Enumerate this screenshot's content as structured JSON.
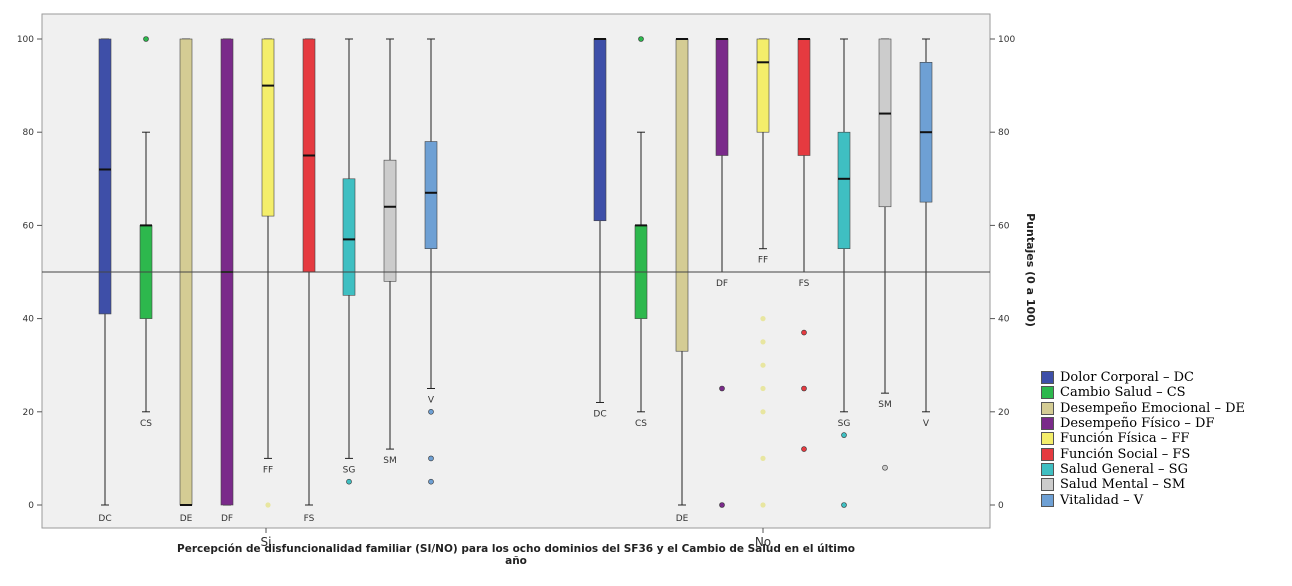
{
  "chart_data": {
    "type": "boxplot",
    "title": "",
    "xlabel": "Percepción de disfuncionalidad familiar  (SI/NO) para los ocho dominios del SF36 y el Cambio de Salud en el último año",
    "ylabel": "Puntajes (0 a 100)",
    "ylim": [
      -5,
      105
    ],
    "yticks": [
      0,
      20,
      40,
      60,
      80,
      100
    ],
    "reference_line": 50,
    "grid": false,
    "legend_position": "right",
    "categories": [
      "Si",
      "No"
    ],
    "series": [
      {
        "name": "Dolor Corporal – DC",
        "code": "DC",
        "color": "#3e4fa8",
        "boxes": [
          {
            "min": 0,
            "q1": 41,
            "median": 72,
            "q3": 100,
            "max": 100,
            "outliers": [],
            "outlier_style": "dot"
          },
          {
            "min": 22,
            "q1": 61,
            "median": 100,
            "q3": 100,
            "max": 100,
            "outliers": [],
            "outlier_style": "dot"
          }
        ]
      },
      {
        "name": "Cambio Salud – CS",
        "code": "CS",
        "color": "#2db84d",
        "boxes": [
          {
            "min": 20,
            "q1": 40,
            "median": 60,
            "q3": 60,
            "max": 80,
            "outliers": [
              100
            ],
            "outlier_style": "dot"
          },
          {
            "min": 20,
            "q1": 40,
            "median": 60,
            "q3": 60,
            "max": 80,
            "outliers": [
              100
            ],
            "outlier_style": "dot"
          }
        ]
      },
      {
        "name": "Desempeño Emocional – DE",
        "code": "DE",
        "color": "#d4cc94",
        "boxes": [
          {
            "min": 0,
            "q1": 0,
            "median": 0,
            "q3": 100,
            "max": 100,
            "outliers": [],
            "outlier_style": "dot"
          },
          {
            "min": 0,
            "q1": 33,
            "median": 100,
            "q3": 100,
            "max": 100,
            "outliers": [],
            "outlier_style": "dot"
          }
        ]
      },
      {
        "name": "Desempeño Físico – DF",
        "code": "DF",
        "color": "#7a2a8a",
        "boxes": [
          {
            "min": 0,
            "q1": 0,
            "median": 50,
            "q3": 100,
            "max": 100,
            "outliers": [],
            "outlier_style": "dot"
          },
          {
            "min": 50,
            "q1": 75,
            "median": 100,
            "q3": 100,
            "max": 100,
            "outliers": [
              25,
              0
            ],
            "outlier_style": "dot"
          }
        ]
      },
      {
        "name": "Función Física – FF",
        "code": "FF",
        "color": "#f4ee6a",
        "boxes": [
          {
            "min": 10,
            "q1": 62,
            "median": 90,
            "q3": 100,
            "max": 100,
            "outliers": [
              0
            ],
            "outlier_style": "faint"
          },
          {
            "min": 55,
            "q1": 80,
            "median": 95,
            "q3": 100,
            "max": 100,
            "outliers": [
              40,
              35,
              30,
              25,
              20,
              10,
              0
            ],
            "outlier_style": "faint"
          }
        ]
      },
      {
        "name": "Función Social – FS",
        "code": "FS",
        "color": "#e53a40",
        "boxes": [
          {
            "min": 0,
            "q1": 50,
            "median": 75,
            "q3": 100,
            "max": 100,
            "outliers": [],
            "outlier_style": "dot"
          },
          {
            "min": 50,
            "q1": 75,
            "median": 100,
            "q3": 100,
            "max": 100,
            "outliers": [
              37,
              25,
              12
            ],
            "outlier_style": "dot"
          }
        ]
      },
      {
        "name": "Salud General – SG",
        "code": "SG",
        "color": "#3fbfc2",
        "boxes": [
          {
            "min": 10,
            "q1": 45,
            "median": 57,
            "q3": 70,
            "max": 100,
            "outliers": [
              5
            ],
            "outlier_style": "dot"
          },
          {
            "min": 20,
            "q1": 55,
            "median": 70,
            "q3": 80,
            "max": 100,
            "outliers": [
              15,
              0
            ],
            "outlier_style": "dot"
          }
        ]
      },
      {
        "name": "Salud Mental – SM",
        "code": "SM",
        "color": "#cccccc",
        "boxes": [
          {
            "min": 12,
            "q1": 48,
            "median": 64,
            "q3": 74,
            "max": 100,
            "outliers": [],
            "outlier_style": "dot"
          },
          {
            "min": 24,
            "q1": 64,
            "median": 84,
            "q3": 100,
            "max": 100,
            "outliers": [
              8
            ],
            "outlier_style": "dot"
          }
        ]
      },
      {
        "name": "Vitalidad – V",
        "code": "V",
        "color": "#6ea0d4",
        "boxes": [
          {
            "min": 25,
            "q1": 55,
            "median": 67,
            "q3": 78,
            "max": 100,
            "outliers": [
              20,
              10,
              5
            ],
            "outlier_style": "dot"
          },
          {
            "min": 20,
            "q1": 65,
            "median": 80,
            "q3": 95,
            "max": 100,
            "outliers": [],
            "outlier_style": "dot"
          }
        ]
      }
    ]
  }
}
